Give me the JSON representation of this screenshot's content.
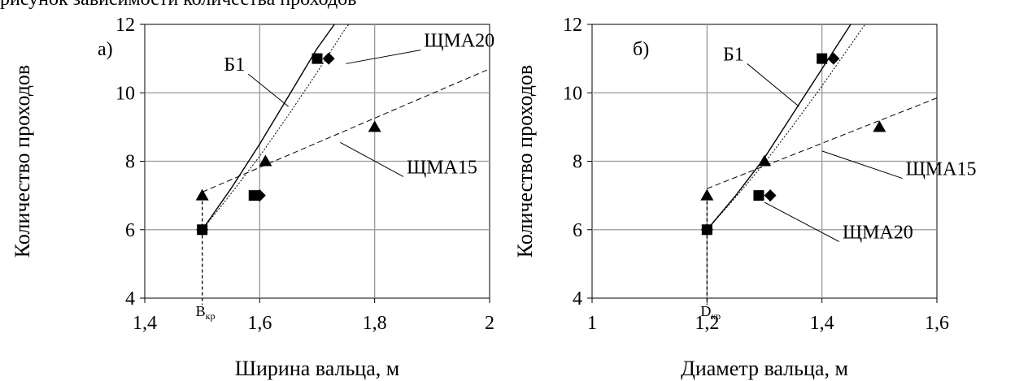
{
  "header_fragment": "рисунок зависимости количества проходов",
  "chart_data": [
    {
      "type": "scatter",
      "panel_label": "а)",
      "xlabel": "Ширина вальца, м",
      "ylabel": "Количество проходов",
      "xlim": [
        1.4,
        2.0
      ],
      "ylim": [
        4,
        12
      ],
      "x_ticks": [
        "1,4",
        "1,6",
        "1,8",
        "2"
      ],
      "y_ticks": [
        "4",
        "6",
        "8",
        "10",
        "12"
      ],
      "grid": true,
      "critical_label": "B",
      "critical_sub": "кр",
      "critical_x": 1.5,
      "series": [
        {
          "marker": "square",
          "points": [
            [
              1.5,
              6
            ],
            [
              1.59,
              7
            ],
            [
              1.7,
              11
            ]
          ]
        },
        {
          "marker": "diamond",
          "points": [
            [
              1.5,
              6
            ],
            [
              1.6,
              7
            ],
            [
              1.72,
              11
            ]
          ]
        },
        {
          "marker": "triangle",
          "points": [
            [
              1.5,
              7
            ],
            [
              1.61,
              8
            ],
            [
              1.8,
              9
            ]
          ]
        }
      ],
      "curves": [
        {
          "name": "Б1",
          "style": "solid",
          "points": [
            [
              1.5,
              6
            ],
            [
              1.55,
              7.2
            ],
            [
              1.6,
              8.5
            ],
            [
              1.65,
              9.9
            ],
            [
              1.7,
              11.3
            ],
            [
              1.73,
              12
            ]
          ]
        },
        {
          "name": "ЩМА20",
          "style": "dotted",
          "points": [
            [
              1.5,
              6
            ],
            [
              1.55,
              7.05
            ],
            [
              1.6,
              8.15
            ],
            [
              1.65,
              9.35
            ],
            [
              1.7,
              10.6
            ],
            [
              1.75,
              11.9
            ],
            [
              1.755,
              12
            ]
          ]
        },
        {
          "name": "ЩМА15",
          "style": "dashed",
          "points": [
            [
              1.5,
              7.1
            ],
            [
              2.0,
              10.7
            ]
          ]
        }
      ],
      "annotations": [
        {
          "text": "Б1",
          "tx": 1.58,
          "ty": 10.55,
          "ax": 1.65,
          "ay": 9.6
        },
        {
          "text": "ЩМА20",
          "tx": 1.88,
          "ty": 11.25,
          "ax": 1.75,
          "ay": 10.85
        },
        {
          "text": "ЩМА15",
          "tx": 1.85,
          "ty": 7.55,
          "ax": 1.74,
          "ay": 8.55
        }
      ]
    },
    {
      "type": "scatter",
      "panel_label": "б)",
      "xlabel": "Диаметр вальца, м",
      "ylabel": "Количество проходов",
      "xlim": [
        1.0,
        1.6
      ],
      "ylim": [
        4,
        12
      ],
      "x_ticks": [
        "1",
        "1,2",
        "1,4",
        "1,6"
      ],
      "y_ticks": [
        "4",
        "6",
        "8",
        "10",
        "12"
      ],
      "grid": true,
      "critical_label": "D",
      "critical_sub": "кр",
      "critical_x": 1.2,
      "series": [
        {
          "marker": "square",
          "points": [
            [
              1.2,
              6
            ],
            [
              1.29,
              7
            ],
            [
              1.4,
              11
            ]
          ]
        },
        {
          "marker": "diamond",
          "points": [
            [
              1.2,
              6
            ],
            [
              1.31,
              7
            ],
            [
              1.42,
              11
            ]
          ]
        },
        {
          "marker": "triangle",
          "points": [
            [
              1.2,
              7
            ],
            [
              1.3,
              8
            ],
            [
              1.5,
              9
            ]
          ]
        }
      ],
      "curves": [
        {
          "name": "Б1",
          "style": "solid",
          "points": [
            [
              1.2,
              6
            ],
            [
              1.25,
              7.0
            ],
            [
              1.3,
              8.1
            ],
            [
              1.35,
              9.4
            ],
            [
              1.4,
              10.7
            ],
            [
              1.45,
              12
            ]
          ]
        },
        {
          "name": "ЩМА20",
          "style": "dotted",
          "points": [
            [
              1.2,
              6
            ],
            [
              1.25,
              6.95
            ],
            [
              1.3,
              7.95
            ],
            [
              1.35,
              9.05
            ],
            [
              1.4,
              10.2
            ],
            [
              1.45,
              11.4
            ],
            [
              1.475,
              12
            ]
          ]
        },
        {
          "name": "ЩМА15",
          "style": "dashed",
          "points": [
            [
              1.2,
              7.2
            ],
            [
              1.6,
              9.85
            ]
          ]
        }
      ],
      "annotations": [
        {
          "text": "Б1",
          "tx": 1.27,
          "ty": 10.85,
          "ax": 1.36,
          "ay": 9.6
        },
        {
          "text": "ЩМА15",
          "tx": 1.54,
          "ty": 7.5,
          "ax": 1.4,
          "ay": 8.3
        },
        {
          "text": "ЩМА20",
          "tx": 1.43,
          "ty": 5.65,
          "ax": 1.3,
          "ay": 6.8
        }
      ]
    }
  ]
}
